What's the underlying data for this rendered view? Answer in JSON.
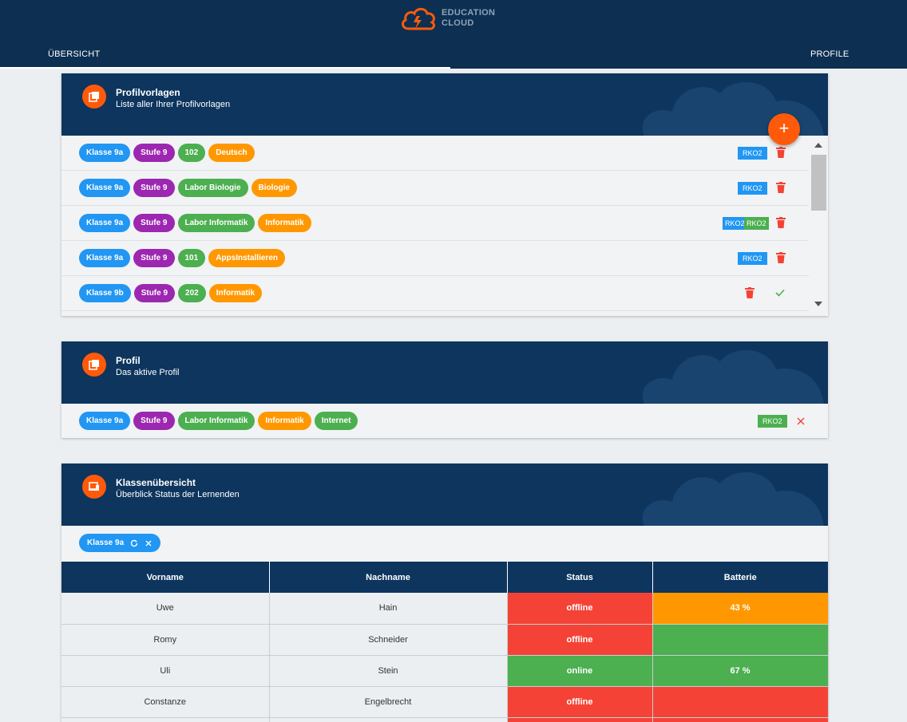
{
  "header": {
    "logo_line1": "EDUCATION",
    "logo_line2": "CLOUD",
    "tabs": [
      {
        "label": "ÜBERSICHT",
        "active": true
      },
      {
        "label": "PROFILE",
        "active": false
      }
    ]
  },
  "colors": {
    "primary_dark": "#0d2f52",
    "card_header": "#0d355e",
    "accent_orange": "#ff5a0a",
    "chip_blue": "#2196f3",
    "chip_purple": "#9c27b0",
    "chip_green": "#4caf50",
    "chip_orange": "#ff9800",
    "status_red": "#f44336"
  },
  "profilvorlagen": {
    "title": "Profilvorlagen",
    "subtitle": "Liste aller Ihrer Profilvorlagen",
    "add_label": "+",
    "rows": [
      {
        "chips": [
          "Klasse 9a",
          "Stufe 9",
          "102",
          "Deutsch"
        ],
        "tags": [
          "RKO2"
        ]
      },
      {
        "chips": [
          "Klasse 9a",
          "Stufe 9",
          "Labor Biologie",
          "Biologie"
        ],
        "tags": [
          "RKO2"
        ]
      },
      {
        "chips": [
          "Klasse 9a",
          "Stufe 9",
          "Labor Informatik",
          "Informatik"
        ],
        "tags": [
          "RKO2",
          "RKO2"
        ]
      },
      {
        "chips": [
          "Klasse 9a",
          "Stufe 9",
          "101",
          "AppsInstallieren"
        ],
        "tags": [
          "RKO2"
        ]
      },
      {
        "chips": [
          "Klasse 9b",
          "Stufe 9",
          "202",
          "Informatik"
        ],
        "tags": []
      }
    ]
  },
  "profil": {
    "title": "Profil",
    "subtitle": "Das aktive Profil",
    "chips": [
      "Klasse 9a",
      "Stufe 9",
      "Labor Informatik",
      "Informatik",
      "Internet"
    ],
    "tag": "RKO2"
  },
  "klassen": {
    "title": "Klassenübersicht",
    "subtitle": "Überblick Status der Lernenden",
    "filter_chip": "Klasse 9a",
    "columns": [
      "Vorname",
      "Nachname",
      "Status",
      "Batterie"
    ],
    "rows": [
      {
        "vorname": "Uwe",
        "nachname": "Hain",
        "status": "offline",
        "batterie": "43 %"
      },
      {
        "vorname": "Romy",
        "nachname": "Schneider",
        "status": "offline",
        "batterie": ""
      },
      {
        "vorname": "Uli",
        "nachname": "Stein",
        "status": "online",
        "batterie": "67 %"
      },
      {
        "vorname": "Constanze",
        "nachname": "Engelbrecht",
        "status": "offline",
        "batterie": ""
      }
    ]
  }
}
